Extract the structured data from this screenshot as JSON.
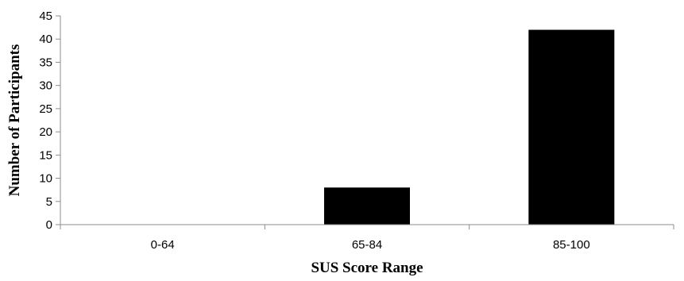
{
  "chart_data": {
    "type": "bar",
    "title": "",
    "xlabel": "SUS Score Range",
    "ylabel": "Number of Participants",
    "categories": [
      "0-64",
      "65-84",
      "85-100"
    ],
    "values": [
      0,
      8,
      42
    ],
    "ylim": [
      0,
      45
    ],
    "yticks": [
      0,
      5,
      10,
      15,
      20,
      25,
      30,
      35,
      40,
      45
    ],
    "grid": false,
    "legend": "none",
    "bar_color": "#000000"
  }
}
